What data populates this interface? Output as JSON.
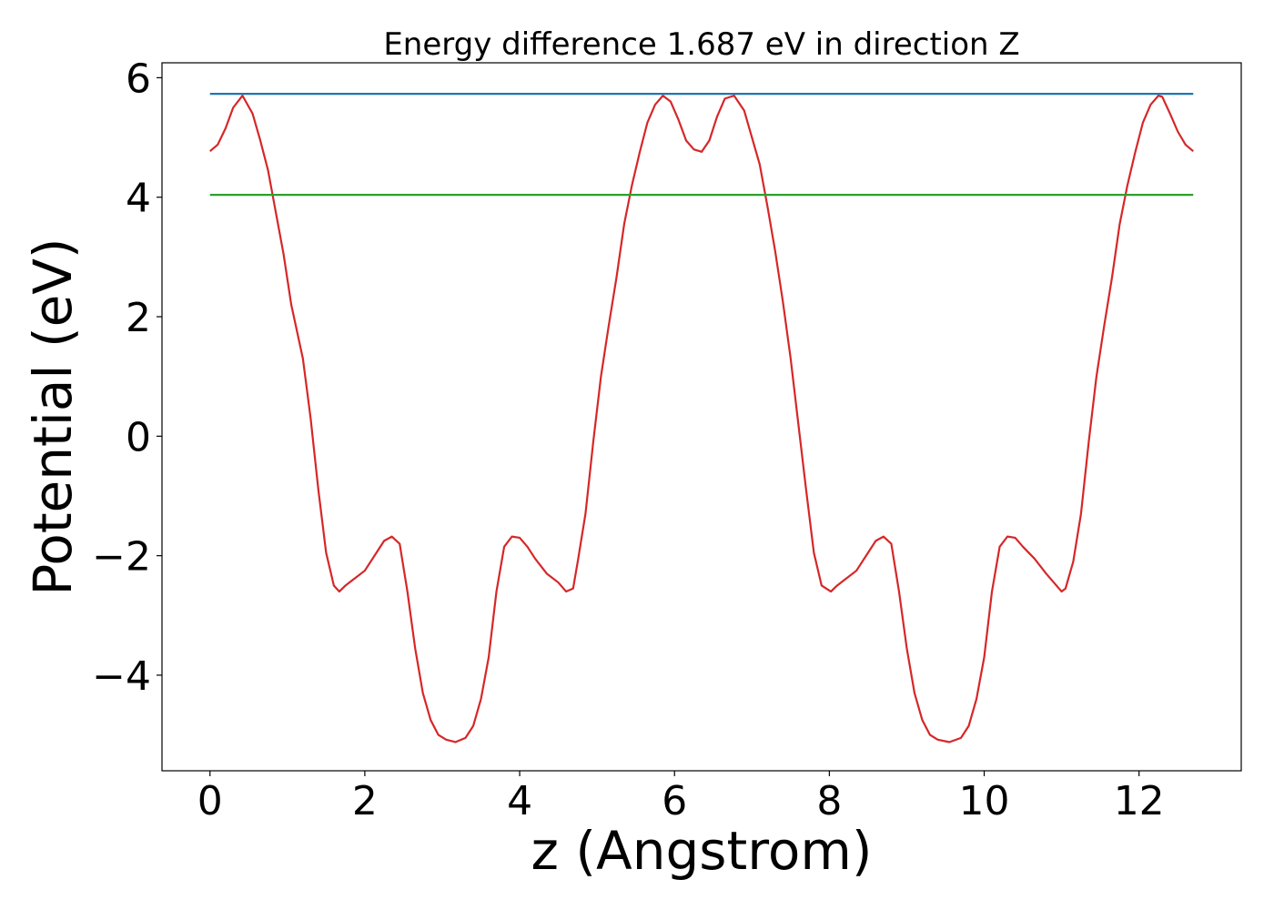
{
  "chart_data": {
    "type": "line",
    "title": "Energy difference 1.687 eV in direction Z",
    "xlabel": "z (Angstrom)",
    "ylabel": "Potential (eV)",
    "xlim": [
      -0.62,
      13.32
    ],
    "ylim": [
      -5.6,
      6.25
    ],
    "xticks": [
      0,
      2,
      4,
      6,
      8,
      10,
      12
    ],
    "xtick_labels": [
      "0",
      "2",
      "4",
      "6",
      "8",
      "10",
      "12"
    ],
    "yticks": [
      -4,
      -2,
      0,
      2,
      4,
      6
    ],
    "ytick_labels": [
      "−4",
      "−2",
      "0",
      "2",
      "4",
      "6"
    ],
    "grid": false,
    "series": [
      {
        "color": "#d62728",
        "x": [
          0.0,
          0.1,
          0.2,
          0.3,
          0.42,
          0.55,
          0.65,
          0.75,
          0.85,
          0.95,
          1.05,
          1.2,
          1.3,
          1.4,
          1.5,
          1.6,
          1.67,
          1.75,
          1.85,
          2.0,
          2.15,
          2.25,
          2.35,
          2.45,
          2.55,
          2.65,
          2.75,
          2.85,
          2.95,
          3.05,
          3.17,
          3.3,
          3.4,
          3.5,
          3.6,
          3.7,
          3.8,
          3.9,
          4.0,
          4.1,
          4.2,
          4.35,
          4.5,
          4.6,
          4.69,
          4.75,
          4.85,
          4.95,
          5.05,
          5.15,
          5.25,
          5.35,
          5.45,
          5.55,
          5.65,
          5.75,
          5.85,
          5.95,
          6.05,
          6.15,
          6.25,
          6.35,
          6.45,
          6.55,
          6.65,
          6.77,
          6.9,
          7.0,
          7.1,
          7.2,
          7.3,
          7.4,
          7.5,
          7.6,
          7.7,
          7.8,
          7.9,
          8.02,
          8.1,
          8.2,
          8.35,
          8.5,
          8.6,
          8.7,
          8.8,
          8.9,
          9.0,
          9.1,
          9.2,
          9.3,
          9.4,
          9.55,
          9.7,
          9.8,
          9.9,
          10.0,
          10.1,
          10.2,
          10.3,
          10.4,
          10.5,
          10.65,
          10.8,
          10.9,
          11.0,
          11.05,
          11.15,
          11.25,
          11.35,
          11.45,
          11.55,
          11.65,
          11.75,
          11.85,
          11.95,
          12.05,
          12.15,
          12.25,
          12.3,
          12.4,
          12.5,
          12.6,
          12.7
        ],
        "y": [
          4.77,
          4.88,
          5.15,
          5.5,
          5.7,
          5.4,
          4.95,
          4.45,
          3.75,
          3.05,
          2.2,
          1.3,
          0.3,
          -0.9,
          -1.95,
          -2.5,
          -2.6,
          -2.5,
          -2.4,
          -2.25,
          -1.95,
          -1.75,
          -1.68,
          -1.8,
          -2.6,
          -3.55,
          -4.3,
          -4.75,
          -5.0,
          -5.08,
          -5.12,
          -5.05,
          -4.85,
          -4.4,
          -3.7,
          -2.6,
          -1.85,
          -1.68,
          -1.7,
          -1.85,
          -2.05,
          -2.3,
          -2.45,
          -2.6,
          -2.55,
          -2.1,
          -1.3,
          -0.1,
          1.0,
          1.85,
          2.65,
          3.55,
          4.2,
          4.75,
          5.25,
          5.55,
          5.7,
          5.6,
          5.3,
          4.95,
          4.8,
          4.76,
          4.95,
          5.35,
          5.65,
          5.7,
          5.45,
          5.0,
          4.55,
          3.85,
          3.1,
          2.25,
          1.3,
          0.2,
          -0.9,
          -1.95,
          -2.5,
          -2.6,
          -2.5,
          -2.4,
          -2.25,
          -1.95,
          -1.75,
          -1.68,
          -1.8,
          -2.6,
          -3.55,
          -4.3,
          -4.75,
          -5.0,
          -5.08,
          -5.12,
          -5.05,
          -4.85,
          -4.4,
          -3.7,
          -2.6,
          -1.85,
          -1.68,
          -1.7,
          -1.85,
          -2.05,
          -2.3,
          -2.45,
          -2.6,
          -2.55,
          -2.1,
          -1.3,
          -0.1,
          1.0,
          1.85,
          2.65,
          3.55,
          4.2,
          4.75,
          5.25,
          5.55,
          5.7,
          5.68,
          5.4,
          5.1,
          4.88,
          4.77
        ]
      },
      {
        "color": "#1f77b4",
        "x": [
          0.0,
          12.7
        ],
        "y": [
          5.73,
          5.73
        ]
      },
      {
        "color": "#2ca02c",
        "x": [
          0.0,
          12.7
        ],
        "y": [
          4.04,
          4.04
        ]
      }
    ]
  }
}
